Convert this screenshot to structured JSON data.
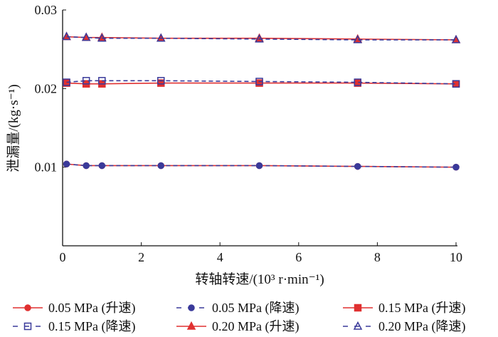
{
  "chart_data": {
    "type": "line",
    "title": "",
    "xlabel": "转轴转速/(10³ r·min⁻¹)",
    "ylabel": "泄漏量/(kg·s⁻¹)",
    "xlim": [
      0,
      10
    ],
    "ylim": [
      0,
      0.03
    ],
    "xticks": [
      "0",
      "2",
      "4",
      "6",
      "8",
      "10"
    ],
    "yticks": [
      "0.01",
      "0.02",
      "0.03"
    ],
    "grid": false,
    "legend_position": "bottom",
    "x": [
      0.1,
      0.6,
      1.0,
      2.5,
      5,
      7.5,
      10
    ],
    "series": [
      {
        "name": "0.05 MPa (升速)",
        "color": "#e03030",
        "dash": false,
        "marker": "circle",
        "values": [
          0.0104,
          0.0102,
          0.0102,
          0.0102,
          0.0102,
          0.0101,
          0.01
        ]
      },
      {
        "name": "0.05 MPa (降速)",
        "color": "#3a3a9a",
        "dash": true,
        "marker": "circle",
        "values": [
          0.0104,
          0.0102,
          0.0102,
          0.0102,
          0.0102,
          0.0101,
          0.01
        ]
      },
      {
        "name": "0.15 MPa (升速)",
        "color": "#e03030",
        "dash": false,
        "marker": "square",
        "values": [
          0.0207,
          0.0206,
          0.0206,
          0.0207,
          0.0207,
          0.0207,
          0.0206
        ]
      },
      {
        "name": "0.15 MPa (降速)",
        "color": "#3a3a9a",
        "dash": true,
        "marker": "square-open",
        "values": [
          0.0208,
          0.021,
          0.021,
          0.021,
          0.0209,
          0.0208,
          0.0206
        ]
      },
      {
        "name": "0.20 MPa (升速)",
        "color": "#e03030",
        "dash": false,
        "marker": "triangle",
        "values": [
          0.0266,
          0.0265,
          0.0265,
          0.0264,
          0.0264,
          0.0263,
          0.0262
        ]
      },
      {
        "name": "0.20 MPa (降速)",
        "color": "#3a3a9a",
        "dash": true,
        "marker": "triangle-open",
        "values": [
          0.0266,
          0.0265,
          0.0264,
          0.0264,
          0.0263,
          0.0262,
          0.0262
        ]
      }
    ]
  }
}
